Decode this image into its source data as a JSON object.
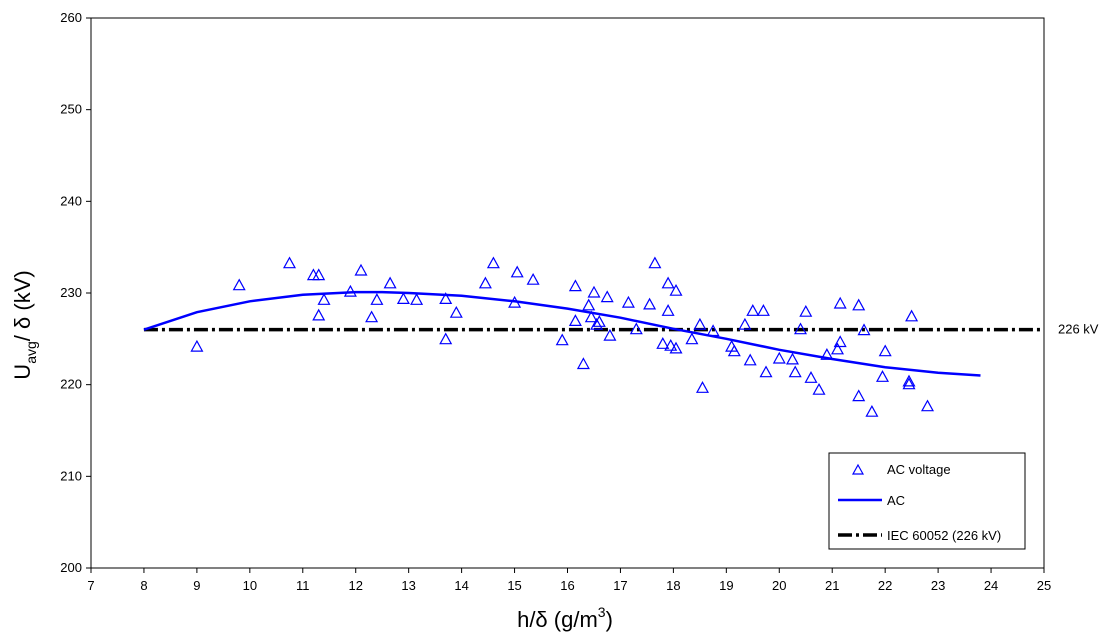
{
  "chart_data": {
    "type": "scatter",
    "xlabel": "h/δ (g/m3)",
    "xlabel_parts": {
      "main": "h/δ (g/m",
      "sup": "3",
      "end": ")"
    },
    "ylabel": "Uavg/ δ (kV)",
    "ylabel_parts": {
      "main": "U",
      "sub": "avg",
      "end": "/  δ  (kV)"
    },
    "xlim": [
      7,
      25
    ],
    "ylim": [
      200,
      260
    ],
    "x_ticks": [
      7,
      8,
      9,
      10,
      11,
      12,
      13,
      14,
      15,
      16,
      17,
      18,
      19,
      20,
      21,
      22,
      23,
      24,
      25
    ],
    "y_ticks": [
      200,
      210,
      220,
      230,
      240,
      250,
      260
    ],
    "grid": false,
    "legend_position": "bottom-right",
    "reference_label": "226 kV",
    "series": [
      {
        "name": "AC voltage",
        "kind": "scatter",
        "marker": "triangle",
        "color": "#0000ff",
        "points": [
          [
            9.0,
            224.1
          ],
          [
            9.8,
            230.8
          ],
          [
            10.75,
            233.2
          ],
          [
            11.2,
            231.9
          ],
          [
            11.3,
            231.9
          ],
          [
            11.3,
            227.5
          ],
          [
            11.4,
            229.2
          ],
          [
            11.9,
            230.1
          ],
          [
            12.1,
            232.4
          ],
          [
            12.3,
            227.3
          ],
          [
            12.4,
            229.2
          ],
          [
            12.65,
            231.0
          ],
          [
            12.9,
            229.3
          ],
          [
            13.15,
            229.2
          ],
          [
            13.7,
            229.3
          ],
          [
            13.7,
            224.9
          ],
          [
            13.9,
            227.8
          ],
          [
            14.45,
            231.0
          ],
          [
            14.6,
            233.2
          ],
          [
            15.0,
            228.9
          ],
          [
            15.05,
            232.2
          ],
          [
            15.35,
            231.4
          ],
          [
            15.9,
            224.8
          ],
          [
            16.15,
            230.7
          ],
          [
            16.15,
            226.9
          ],
          [
            16.3,
            222.2
          ],
          [
            16.4,
            228.6
          ],
          [
            16.45,
            227.3
          ],
          [
            16.5,
            230.0
          ],
          [
            16.55,
            226.5
          ],
          [
            16.6,
            226.8
          ],
          [
            16.75,
            229.5
          ],
          [
            16.8,
            225.3
          ],
          [
            17.15,
            228.9
          ],
          [
            17.3,
            226.0
          ],
          [
            17.55,
            228.7
          ],
          [
            17.65,
            233.2
          ],
          [
            17.8,
            224.4
          ],
          [
            17.9,
            228.0
          ],
          [
            17.9,
            231.0
          ],
          [
            17.95,
            224.2
          ],
          [
            18.05,
            230.2
          ],
          [
            18.05,
            223.9
          ],
          [
            18.35,
            224.9
          ],
          [
            18.5,
            226.5
          ],
          [
            18.55,
            219.6
          ],
          [
            18.75,
            225.8
          ],
          [
            19.1,
            224.1
          ],
          [
            19.15,
            223.6
          ],
          [
            19.35,
            226.5
          ],
          [
            19.45,
            222.6
          ],
          [
            19.5,
            228.0
          ],
          [
            19.7,
            228.0
          ],
          [
            19.75,
            221.3
          ],
          [
            20.0,
            222.8
          ],
          [
            20.25,
            222.7
          ],
          [
            20.3,
            221.3
          ],
          [
            20.4,
            226.0
          ],
          [
            20.5,
            227.9
          ],
          [
            20.6,
            220.7
          ],
          [
            20.75,
            219.4
          ],
          [
            20.9,
            223.2
          ],
          [
            21.1,
            223.8
          ],
          [
            21.15,
            224.6
          ],
          [
            21.15,
            228.8
          ],
          [
            21.5,
            228.6
          ],
          [
            21.5,
            218.7
          ],
          [
            21.6,
            225.9
          ],
          [
            21.75,
            217.0
          ],
          [
            21.95,
            220.8
          ],
          [
            22.0,
            223.6
          ],
          [
            22.45,
            220.3
          ],
          [
            22.45,
            220.0
          ],
          [
            22.5,
            227.4
          ],
          [
            22.8,
            217.6
          ]
        ]
      },
      {
        "name": "AC",
        "kind": "line",
        "color": "#0000ff",
        "points": [
          [
            8.0,
            226.0
          ],
          [
            9.0,
            227.9
          ],
          [
            10.0,
            229.1
          ],
          [
            11.0,
            229.8
          ],
          [
            12.0,
            230.1
          ],
          [
            12.5,
            230.1
          ],
          [
            13.0,
            230.0
          ],
          [
            14.0,
            229.7
          ],
          [
            15.0,
            229.1
          ],
          [
            16.0,
            228.3
          ],
          [
            17.0,
            227.3
          ],
          [
            18.0,
            226.1
          ],
          [
            19.0,
            225.0
          ],
          [
            20.0,
            223.8
          ],
          [
            21.0,
            222.8
          ],
          [
            22.0,
            221.9
          ],
          [
            23.0,
            221.3
          ],
          [
            23.8,
            221.0
          ]
        ]
      },
      {
        "name": "IEC 60052 (226 kV)",
        "kind": "reference",
        "color": "#000000",
        "y": 226,
        "x_start": 8
      }
    ]
  }
}
